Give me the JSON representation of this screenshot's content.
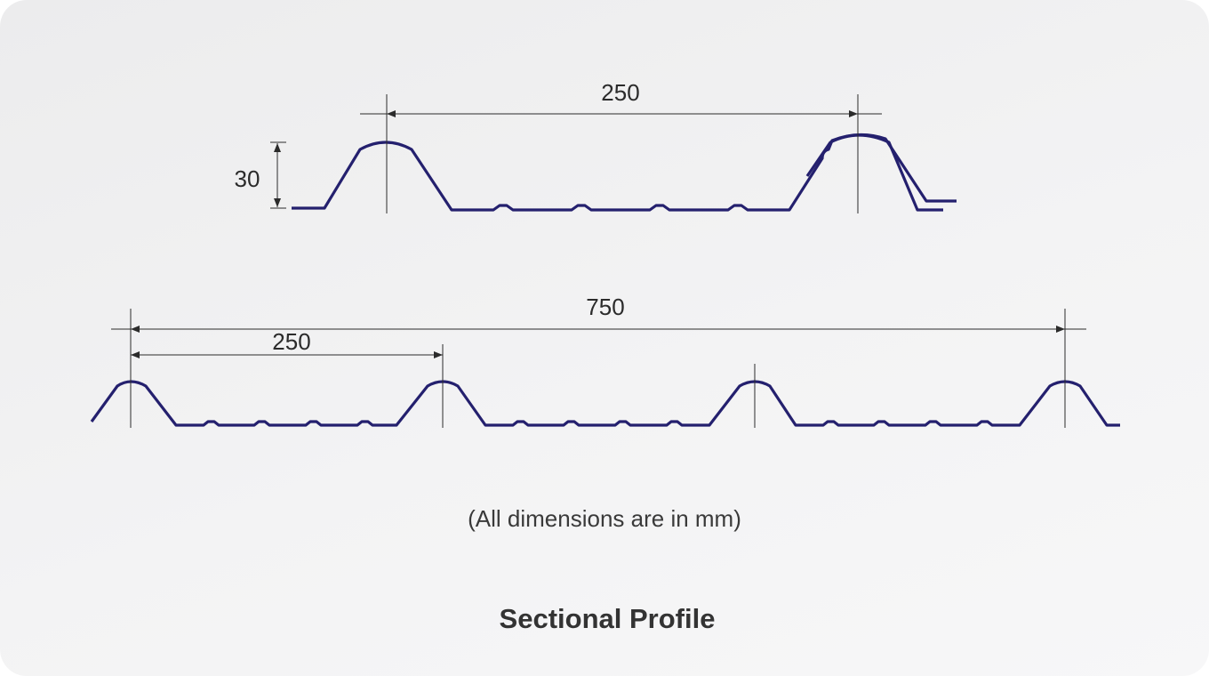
{
  "colors": {
    "profile": "#24206e",
    "dimension_line": "#2b2b2b",
    "background": "#f0f0f1"
  },
  "top_profile": {
    "pitch_label": "250",
    "height_label": "30"
  },
  "bottom_profile": {
    "total_label": "750",
    "pitch_label": "250"
  },
  "note": "(All dimensions are in mm)",
  "caption": "Sectional Profile"
}
